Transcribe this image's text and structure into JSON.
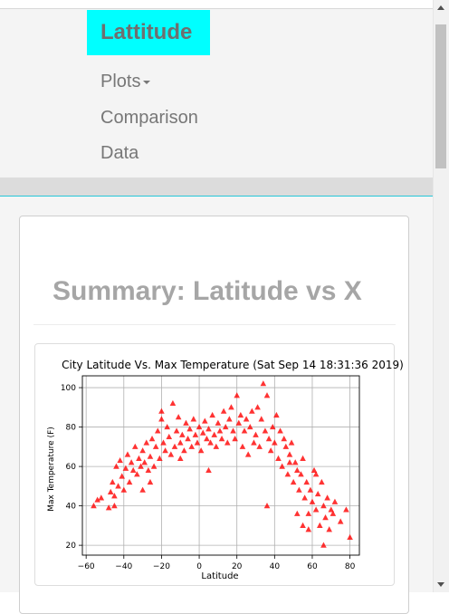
{
  "navbar": {
    "brand": "Lattitude",
    "items": [
      {
        "label": "Plots",
        "has_dropdown": true
      },
      {
        "label": "Comparison",
        "has_dropdown": false
      },
      {
        "label": "Data",
        "has_dropdown": false
      }
    ]
  },
  "panel": {
    "title": "Summary: Latitude vs X"
  },
  "colors": {
    "brand_bg": "#00ffff",
    "marker": "#ff0000",
    "title_gray": "#a6a6a6"
  },
  "chart_data": {
    "type": "scatter",
    "title": "City Latitude Vs. Max Temperature (Sat Sep 14 18:31:36 2019)",
    "xlabel": "Latitude",
    "ylabel": "Max Temperature (F)",
    "xlim": [
      -62,
      85
    ],
    "ylim": [
      15,
      106
    ],
    "xticks": [
      -60,
      -40,
      -20,
      0,
      20,
      40,
      60,
      80
    ],
    "yticks": [
      20,
      40,
      60,
      80,
      100
    ],
    "grid": true,
    "marker": "triangle",
    "points": [
      [
        -56,
        40
      ],
      [
        -54,
        43
      ],
      [
        -52,
        44
      ],
      [
        -48,
        39
      ],
      [
        -47,
        47
      ],
      [
        -46,
        52
      ],
      [
        -45,
        45
      ],
      [
        -44,
        60
      ],
      [
        -43,
        50
      ],
      [
        -42,
        63
      ],
      [
        -41,
        55
      ],
      [
        -40,
        48
      ],
      [
        -39,
        59
      ],
      [
        -38,
        66
      ],
      [
        -37,
        52
      ],
      [
        -36,
        62
      ],
      [
        -35,
        58
      ],
      [
        -34,
        70
      ],
      [
        -33,
        56
      ],
      [
        -32,
        64
      ],
      [
        -31,
        60
      ],
      [
        -30,
        68
      ],
      [
        -29,
        62
      ],
      [
        -28,
        72
      ],
      [
        -27,
        58
      ],
      [
        -26,
        65
      ],
      [
        -25,
        74
      ],
      [
        -24,
        60
      ],
      [
        -23,
        70
      ],
      [
        -22,
        78
      ],
      [
        -21,
        64
      ],
      [
        -20,
        88
      ],
      [
        -19,
        72
      ],
      [
        -18,
        68
      ],
      [
        -17,
        80
      ],
      [
        -16,
        75
      ],
      [
        -15,
        66
      ],
      [
        -14,
        92
      ],
      [
        -13,
        70
      ],
      [
        -12,
        78
      ],
      [
        -11,
        85
      ],
      [
        -10,
        72
      ],
      [
        -9,
        76
      ],
      [
        -8,
        68
      ],
      [
        -7,
        82
      ],
      [
        -6,
        74
      ],
      [
        -5,
        79
      ],
      [
        -4,
        70
      ],
      [
        -3,
        84
      ],
      [
        -2,
        76
      ],
      [
        -1,
        72
      ],
      [
        0,
        80
      ],
      [
        1,
        68
      ],
      [
        2,
        77
      ],
      [
        3,
        83
      ],
      [
        4,
        74
      ],
      [
        5,
        79
      ],
      [
        6,
        72
      ],
      [
        7,
        86
      ],
      [
        8,
        76
      ],
      [
        9,
        70
      ],
      [
        10,
        82
      ],
      [
        11,
        78
      ],
      [
        12,
        74
      ],
      [
        13,
        88
      ],
      [
        14,
        80
      ],
      [
        15,
        72
      ],
      [
        16,
        84
      ],
      [
        17,
        90
      ],
      [
        18,
        78
      ],
      [
        19,
        74
      ],
      [
        20,
        96
      ],
      [
        21,
        82
      ],
      [
        22,
        86
      ],
      [
        23,
        70
      ],
      [
        24,
        78
      ],
      [
        25,
        84
      ],
      [
        26,
        66
      ],
      [
        27,
        80
      ],
      [
        28,
        88
      ],
      [
        29,
        72
      ],
      [
        30,
        76
      ],
      [
        31,
        90
      ],
      [
        32,
        70
      ],
      [
        33,
        84
      ],
      [
        34,
        102
      ],
      [
        35,
        78
      ],
      [
        36,
        96
      ],
      [
        37,
        74
      ],
      [
        38,
        68
      ],
      [
        39,
        80
      ],
      [
        40,
        72
      ],
      [
        41,
        86
      ],
      [
        42,
        64
      ],
      [
        43,
        78
      ],
      [
        44,
        60
      ],
      [
        45,
        74
      ],
      [
        46,
        70
      ],
      [
        47,
        56
      ],
      [
        48,
        66
      ],
      [
        49,
        72
      ],
      [
        50,
        52
      ],
      [
        51,
        62
      ],
      [
        52,
        58
      ],
      [
        53,
        48
      ],
      [
        54,
        56
      ],
      [
        55,
        64
      ],
      [
        56,
        44
      ],
      [
        57,
        52
      ],
      [
        58,
        36
      ],
      [
        59,
        48
      ],
      [
        60,
        42
      ],
      [
        61,
        58
      ],
      [
        62,
        38
      ],
      [
        63,
        46
      ],
      [
        64,
        30
      ],
      [
        65,
        52
      ],
      [
        66,
        40
      ],
      [
        67,
        34
      ],
      [
        68,
        44
      ],
      [
        69,
        28
      ],
      [
        70,
        38
      ],
      [
        71,
        36
      ],
      [
        72,
        42
      ],
      [
        75,
        32
      ],
      [
        78,
        38
      ],
      [
        80,
        24
      ],
      [
        66,
        20
      ],
      [
        55,
        30
      ],
      [
        52,
        36
      ],
      [
        -30,
        48
      ],
      [
        -26,
        52
      ],
      [
        -10,
        64
      ],
      [
        5,
        58
      ],
      [
        -45,
        40
      ],
      [
        48,
        62
      ],
      [
        62,
        56
      ],
      [
        58,
        28
      ],
      [
        36,
        40
      ],
      [
        -20,
        84
      ]
    ]
  }
}
